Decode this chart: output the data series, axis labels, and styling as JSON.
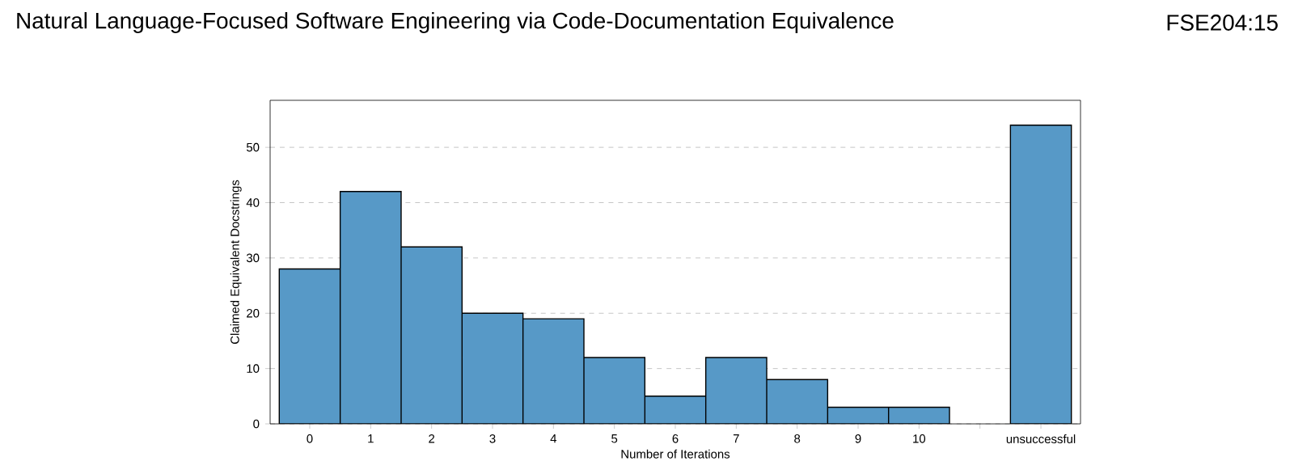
{
  "chart_data": {
    "type": "bar",
    "title": "Natural Language-Focused Software Engineering via Code-Documentation Equivalence",
    "annotations": [
      "FSE204:15"
    ],
    "xlabel": "Number of Iterations",
    "ylabel": "Claimed Equivalent Docstrings",
    "categories": [
      "0",
      "1",
      "2",
      "3",
      "4",
      "5",
      "6",
      "7",
      "8",
      "9",
      "10",
      null,
      "unsuccessful"
    ],
    "values": [
      28,
      42,
      32,
      20,
      19,
      12,
      5,
      12,
      8,
      3,
      3,
      null,
      54
    ],
    "color": "#5799c7",
    "ylim": [
      0,
      58.5
    ],
    "yticks": [
      0,
      10,
      20,
      30,
      40,
      50
    ],
    "grid": "y"
  }
}
